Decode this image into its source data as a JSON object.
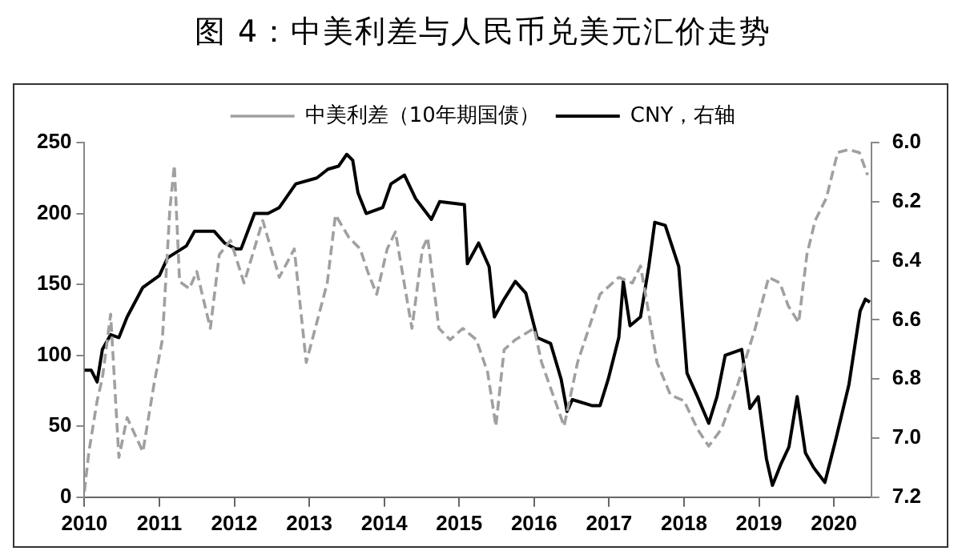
{
  "chart_data": {
    "type": "line",
    "title": "图 4：中美利差与人民币兑美元汇价走势",
    "xlim": [
      2010,
      2020.5
    ],
    "xticks": [
      2010,
      2011,
      2012,
      2013,
      2014,
      2015,
      2016,
      2017,
      2018,
      2019,
      2020
    ],
    "ylim": [
      0,
      250
    ],
    "yticks": [
      0,
      50,
      100,
      150,
      200,
      250
    ],
    "y2lim": [
      7.2,
      6.0
    ],
    "y2ticks": [
      {
        "value": 6.0,
        "label": "6.0"
      },
      6.2,
      6.4,
      6.6,
      6.8,
      {
        "value": 7.0,
        "label": "7.0"
      },
      7.2
    ],
    "grid": false,
    "legend": "top",
    "marker": "none",
    "series": [
      {
        "name": "中美利差（10年期国债）",
        "color": "#a0a0a0",
        "line_style": "dashed",
        "x": [
          2010.0,
          2010.06,
          2010.17,
          2010.24,
          2010.35,
          2010.46,
          2010.57,
          2010.78,
          2010.93,
          2011.04,
          2011.14,
          2011.2,
          2011.27,
          2011.4,
          2011.5,
          2011.68,
          2011.8,
          2011.95,
          2012.13,
          2012.38,
          2012.6,
          2012.8,
          2012.96,
          2013.24,
          2013.35,
          2013.53,
          2013.68,
          2013.78,
          2013.9,
          2014.04,
          2014.15,
          2014.37,
          2014.51,
          2014.58,
          2014.73,
          2014.88,
          2015.05,
          2015.23,
          2015.38,
          2015.49,
          2015.6,
          2015.75,
          2016.0,
          2016.1,
          2016.4,
          2016.58,
          2016.88,
          2017.13,
          2017.31,
          2017.42,
          2017.5,
          2017.64,
          2017.82,
          2018.0,
          2018.18,
          2018.33,
          2018.5,
          2018.72,
          2018.95,
          2019.13,
          2019.28,
          2019.39,
          2019.53,
          2019.64,
          2019.75,
          2019.9,
          2020.05,
          2020.2,
          2020.34,
          2020.45
        ],
        "values": [
          4,
          32,
          68,
          84,
          129,
          28,
          56,
          32,
          80,
          111,
          203,
          234,
          152,
          147,
          159,
          119,
          171,
          181,
          151,
          195,
          155,
          175,
          95,
          151,
          199,
          183,
          175,
          159,
          143,
          175,
          187,
          119,
          175,
          183,
          119,
          111,
          119,
          111,
          88,
          50,
          104,
          111,
          119,
          95,
          50,
          95,
          143,
          155,
          151,
          163,
          139,
          95,
          72,
          68,
          48,
          36,
          48,
          80,
          119,
          155,
          151,
          135,
          123,
          171,
          195,
          211,
          243,
          245,
          243,
          227
        ]
      },
      {
        "name": "CNY，右轴",
        "color": "#000000",
        "line_style": "solid",
        "axis": "y2",
        "x": [
          2010.0,
          2010.09,
          2010.17,
          2010.24,
          2010.35,
          2010.46,
          2010.57,
          2010.78,
          2011.0,
          2011.11,
          2011.36,
          2011.47,
          2011.73,
          2011.87,
          2012.02,
          2012.09,
          2012.27,
          2012.45,
          2012.6,
          2012.82,
          2013.1,
          2013.25,
          2013.39,
          2013.5,
          2013.58,
          2013.65,
          2013.76,
          2013.98,
          2014.09,
          2014.27,
          2014.42,
          2014.63,
          2014.74,
          2015.07,
          2015.11,
          2015.26,
          2015.4,
          2015.47,
          2015.6,
          2015.75,
          2015.89,
          2016.04,
          2016.22,
          2016.36,
          2016.44,
          2016.51,
          2016.77,
          2016.88,
          2016.99,
          2017.13,
          2017.19,
          2017.28,
          2017.42,
          2017.53,
          2017.61,
          2017.75,
          2017.93,
          2018.04,
          2018.18,
          2018.33,
          2018.44,
          2018.55,
          2018.77,
          2018.88,
          2018.99,
          2019.1,
          2019.18,
          2019.29,
          2019.4,
          2019.51,
          2019.62,
          2019.73,
          2019.88,
          2020.02,
          2020.2,
          2020.35,
          2020.42,
          2020.48
        ],
        "values": [
          6.77,
          6.77,
          6.81,
          6.7,
          6.65,
          6.66,
          6.59,
          6.49,
          6.45,
          6.39,
          6.35,
          6.3,
          6.3,
          6.34,
          6.36,
          6.36,
          6.24,
          6.24,
          6.22,
          6.14,
          6.12,
          6.09,
          6.08,
          6.04,
          6.06,
          6.17,
          6.24,
          6.22,
          6.14,
          6.11,
          6.19,
          6.26,
          6.2,
          6.21,
          6.41,
          6.34,
          6.42,
          6.59,
          6.53,
          6.47,
          6.51,
          6.66,
          6.68,
          6.8,
          6.91,
          6.87,
          6.89,
          6.89,
          6.8,
          6.66,
          6.47,
          6.62,
          6.59,
          6.42,
          6.27,
          6.28,
          6.42,
          6.78,
          6.86,
          6.95,
          6.86,
          6.72,
          6.7,
          6.9,
          6.86,
          7.07,
          7.16,
          7.09,
          7.03,
          6.86,
          7.05,
          7.1,
          7.15,
          7.01,
          6.82,
          6.57,
          6.53,
          6.54
        ]
      }
    ]
  }
}
